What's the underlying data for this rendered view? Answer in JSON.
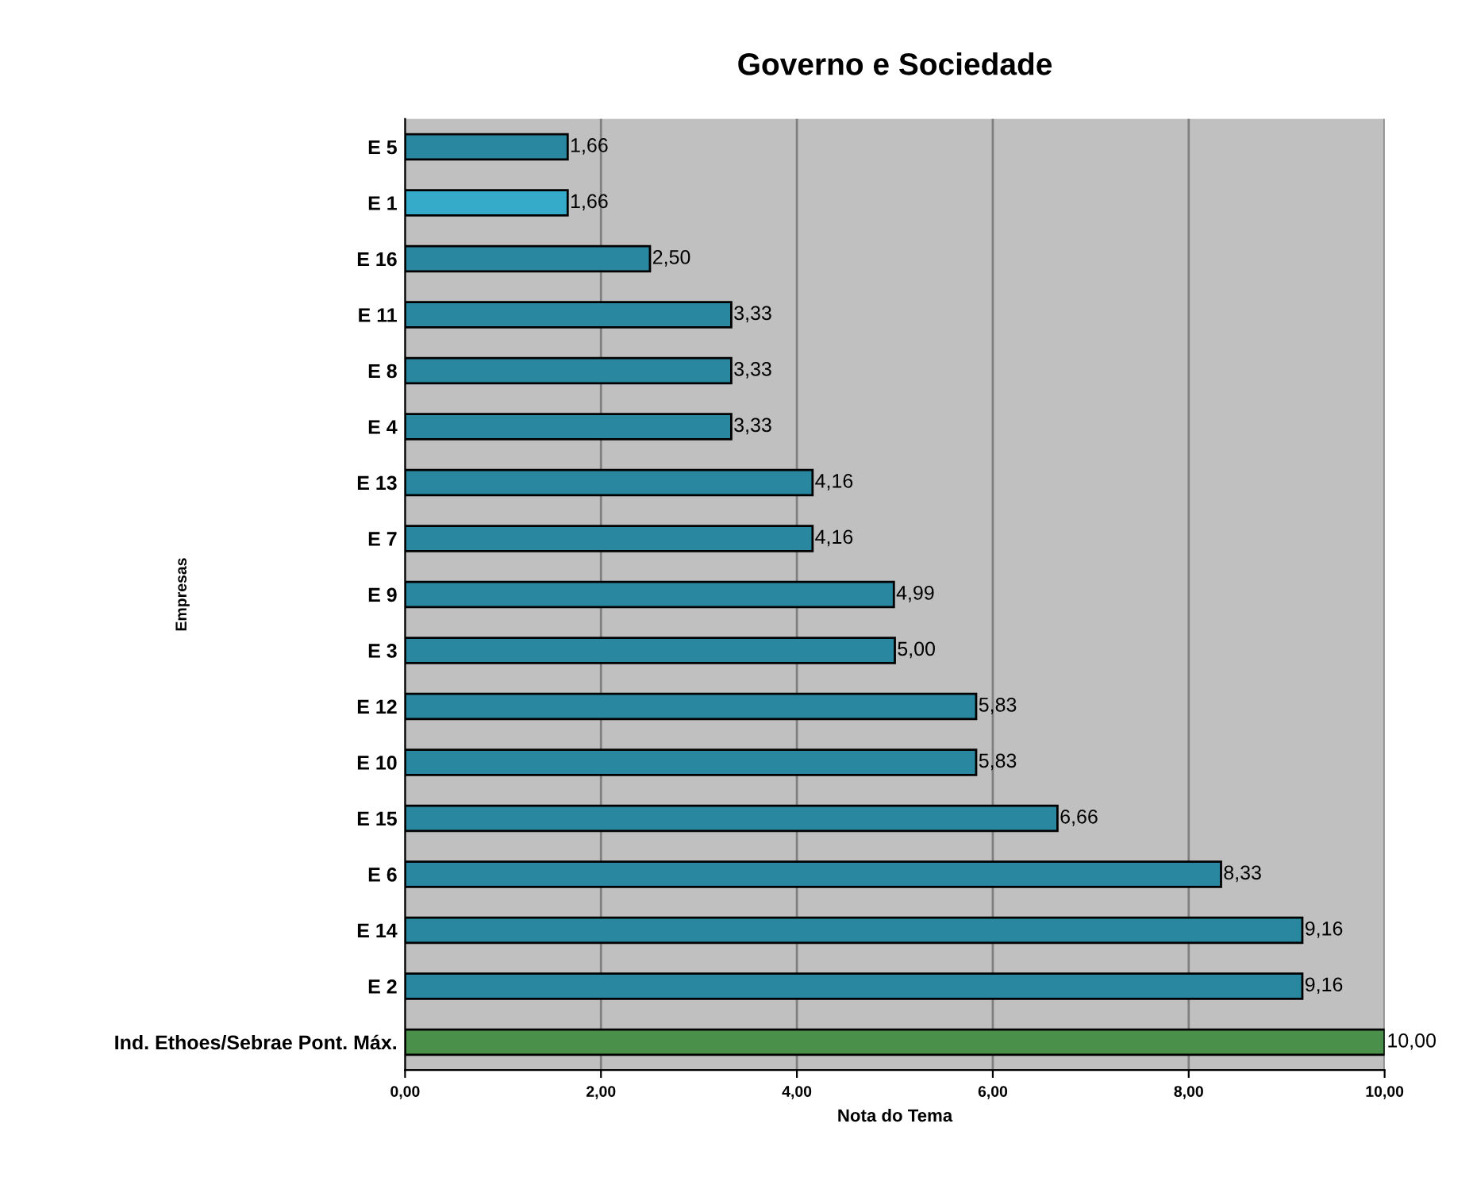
{
  "chart_data": {
    "type": "bar",
    "orientation": "horizontal",
    "title": "Governo e Sociedade",
    "xlabel": "Nota do Tema",
    "ylabel": "Empresas",
    "categories": [
      "E 5",
      "E 1",
      "E 16",
      "E 11",
      "E 8",
      "E 4",
      "E 13",
      "E 7",
      "E 9",
      "E 3",
      "E 12",
      "E 10",
      "E 15",
      "E 6",
      "E 14",
      "E 2",
      "Ind. Ethoes/Sebrae Pont. Máx."
    ],
    "values": [
      1.66,
      1.66,
      2.5,
      3.33,
      3.33,
      3.33,
      4.16,
      4.16,
      4.99,
      5.0,
      5.83,
      5.83,
      6.66,
      8.33,
      9.16,
      9.16,
      10.0
    ],
    "value_labels": [
      "1,66",
      "1,66",
      "2,50",
      "3,33",
      "3,33",
      "3,33",
      "4,16",
      "4,16",
      "4,99",
      "5,00",
      "5,83",
      "5,83",
      "6,66",
      "8,33",
      "9,16",
      "9,16",
      "10,00"
    ],
    "colors": [
      "#2a87a0",
      "#35abc9",
      "#2a87a0",
      "#2a87a0",
      "#2a87a0",
      "#2a87a0",
      "#2a87a0",
      "#2a87a0",
      "#2a87a0",
      "#2a87a0",
      "#2a87a0",
      "#2a87a0",
      "#2a87a0",
      "#2a87a0",
      "#2a87a0",
      "#2a87a0",
      "#4a8f4a"
    ],
    "xlim": [
      0,
      10
    ],
    "xticks": [
      {
        "value": 0,
        "label": "0,00"
      },
      {
        "value": 2,
        "label": "2,00"
      },
      {
        "value": 4,
        "label": "4,00"
      },
      {
        "value": 6,
        "label": "6,00"
      },
      {
        "value": 8,
        "label": "8,00"
      },
      {
        "value": 10,
        "label": "10,00"
      }
    ],
    "grid": "x"
  }
}
